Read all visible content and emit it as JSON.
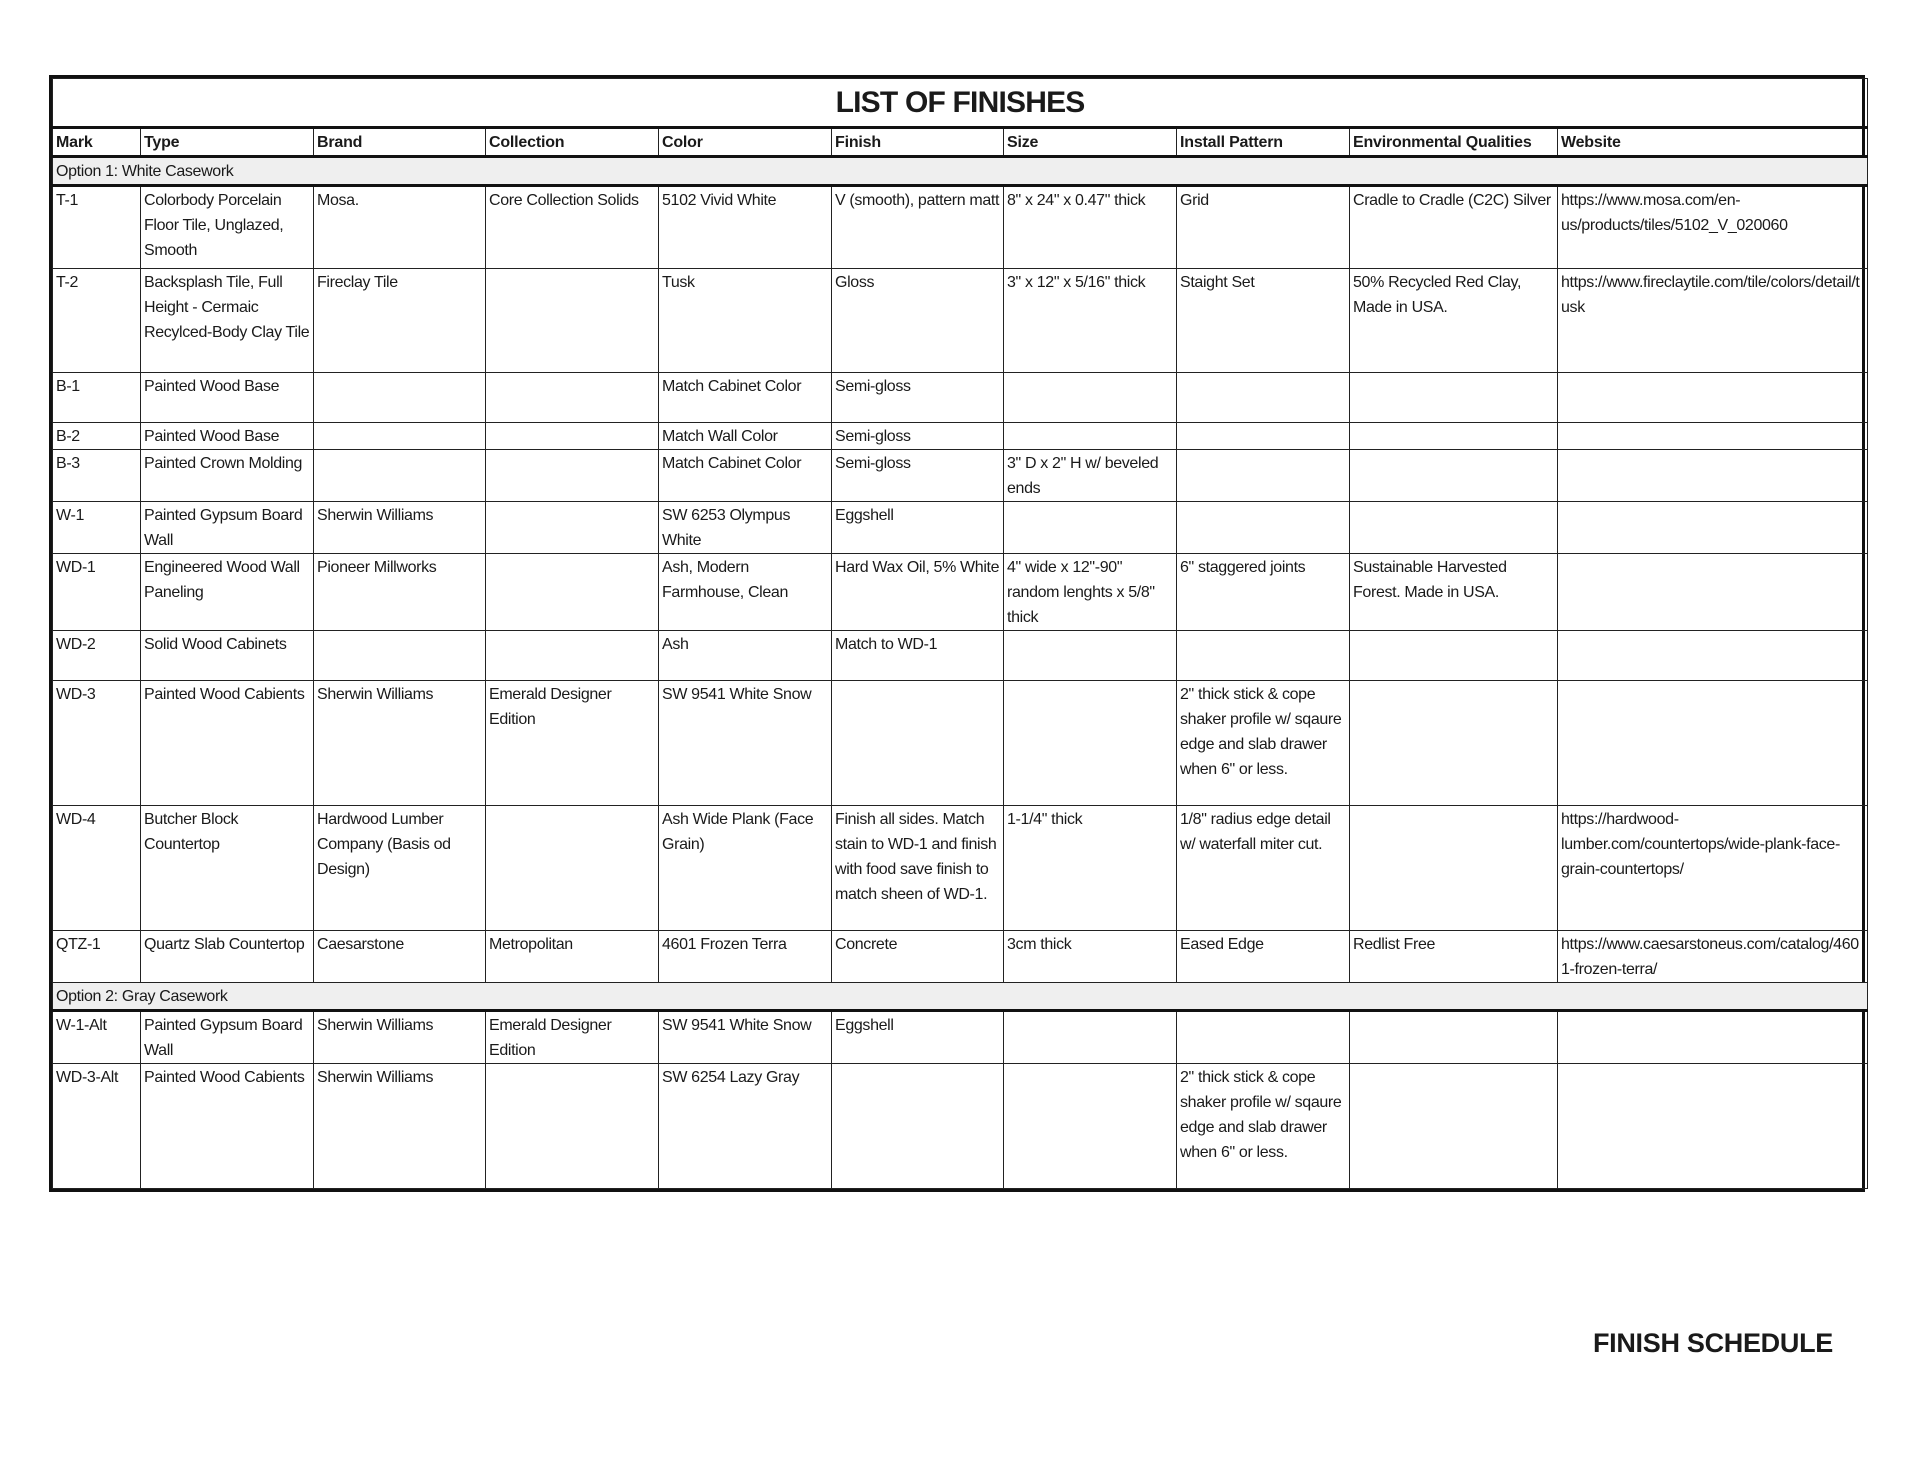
{
  "title": "LIST OF FINISHES",
  "footer": "FINISH SCHEDULE",
  "columns": [
    "Mark",
    "Type",
    "Brand",
    "Collection",
    "Color",
    "Finish",
    "Size",
    "Install Pattern",
    "Environmental Qualities",
    "Website"
  ],
  "sections": [
    {
      "label": "Option 1: White Casework",
      "rows": [
        [
          "T-1",
          "Colorbody Porcelain Floor Tile, Unglazed, Smooth",
          "Mosa.",
          "Core Collection Solids",
          "5102 Vivid White",
          "V (smooth), pattern matt",
          "8\" x 24\" x 0.47\" thick",
          "Grid",
          "Cradle to Cradle (C2C) Silver",
          "https://www.mosa.com/en-us/products/tiles/5102_V_020060"
        ],
        [
          "T-2",
          "Backsplash Tile, Full Height - Cermaic Recylced-Body Clay Tile",
          "Fireclay Tile",
          "",
          "Tusk",
          "Gloss",
          "3\" x 12\" x 5/16\" thick",
          "Staight Set",
          "50% Recycled Red Clay, Made in USA.",
          "https://www.fireclaytile.com/tile/colors/detail/tusk"
        ],
        [
          "B-1",
          "Painted Wood Base",
          "",
          "",
          "Match Cabinet Color",
          "Semi-gloss",
          "",
          "",
          "",
          ""
        ],
        [
          "B-2",
          "Painted Wood Base",
          "",
          "",
          "Match Wall Color",
          "Semi-gloss",
          "",
          "",
          "",
          ""
        ],
        [
          "B-3",
          "Painted Crown Molding",
          "",
          "",
          "Match Cabinet Color",
          "Semi-gloss",
          "3\" D  x  2\" H w/ beveled ends",
          "",
          "",
          ""
        ],
        [
          "W-1",
          "Painted Gypsum Board Wall",
          "Sherwin Williams",
          "",
          "SW 6253 Olympus White",
          "Eggshell",
          "",
          "",
          "",
          ""
        ],
        [
          "WD-1",
          "Engineered Wood Wall Paneling",
          "Pioneer Millworks",
          "",
          "Ash, Modern Farmhouse, Clean",
          "Hard Wax Oil, 5% White",
          "4\" wide x 12\"-90\" random lenghts x 5/8\" thick",
          "6\" staggered joints",
          "Sustainable Harvested Forest. Made in USA.",
          ""
        ],
        [
          "WD-2",
          "Solid Wood Cabinets",
          "",
          "",
          "Ash",
          "Match to WD-1",
          "",
          "",
          "",
          ""
        ],
        [
          "WD-3",
          "Painted Wood Cabients",
          "Sherwin Williams",
          "Emerald Designer Edition",
          "SW 9541 White Snow",
          "",
          "",
          "2\" thick stick & cope shaker profile w/ sqaure edge and slab drawer when 6\" or less.",
          "",
          ""
        ],
        [
          "WD-4",
          "Butcher Block Countertop",
          "Hardwood Lumber Company (Basis od Design)",
          "",
          "Ash Wide Plank (Face Grain)",
          "Finish all sides. Match stain to WD-1 and finish with food save finish to match sheen of WD-1.",
          "1-1/4\" thick",
          "1/8\" radius edge detail w/ waterfall miter cut.",
          "",
          "https://hardwood-lumber.com/countertops/wide-plank-face-grain-countertops/"
        ],
        [
          "QTZ-1",
          "Quartz Slab Countertop",
          "Caesarstone",
          "Metropolitan",
          "4601 Frozen Terra",
          "Concrete",
          "3cm thick",
          "Eased Edge",
          "Redlist Free",
          "https://www.caesarstoneus.com/catalog/4601-frozen-terra/"
        ]
      ]
    },
    {
      "label": "Option 2: Gray Casework",
      "rows": [
        [
          "W-1-Alt",
          "Painted Gypsum Board Wall",
          "Sherwin Williams",
          "Emerald Designer Edition",
          "SW 9541 White Snow",
          "Eggshell",
          "",
          "",
          "",
          ""
        ],
        [
          "WD-3-Alt",
          "Painted Wood Cabients",
          "Sherwin Williams",
          "",
          "SW 6254 Lazy Gray",
          "",
          "",
          "2\" thick stick & cope shaker profile w/ sqaure edge and slab drawer when 6\" or less.",
          "",
          ""
        ]
      ]
    }
  ]
}
